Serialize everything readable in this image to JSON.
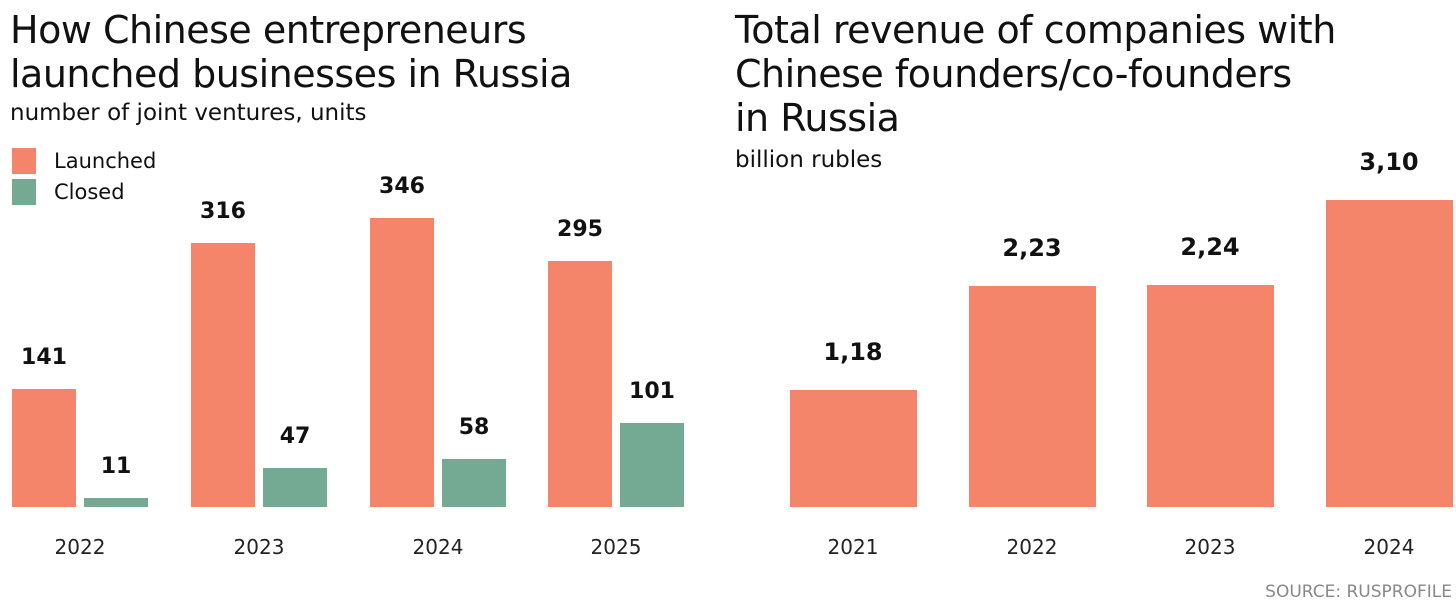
{
  "chart_data": [
    {
      "type": "bar",
      "title": "How Chinese entrepreneurs launched businesses in Russia",
      "subtitle": "number of joint ventures, units",
      "categories": [
        "2022",
        "2023",
        "2024",
        "2025"
      ],
      "series": [
        {
          "name": "Launched",
          "color": "#F4846A",
          "values": [
            141,
            316,
            346,
            295
          ]
        },
        {
          "name": "Closed",
          "color": "#74AA93",
          "values": [
            11,
            47,
            58,
            101
          ]
        }
      ],
      "labels": [
        [
          "141",
          "316",
          "346",
          "295"
        ],
        [
          "11",
          "47",
          "58",
          "101"
        ]
      ],
      "legend": "top-left"
    },
    {
      "type": "bar",
      "title": "Total revenue of companies with Chinese founders/co-founders in Russia",
      "subtitle": "billion rubles",
      "categories": [
        "2021",
        "2022",
        "2023",
        "2024"
      ],
      "values": [
        1.18,
        2.23,
        2.24,
        3.1
      ],
      "labels": [
        "1,18",
        "2,23",
        "2,24",
        "3,10"
      ],
      "color": "#F4846A"
    }
  ],
  "left_title_lines": [
    "How Chinese entrepreneurs",
    "launched businesses in Russia"
  ],
  "right_title_lines": [
    "Total revenue of companies with",
    "Chinese founders/co-founders",
    "in Russia"
  ],
  "source": "SOURCE: RUSPROFILE"
}
